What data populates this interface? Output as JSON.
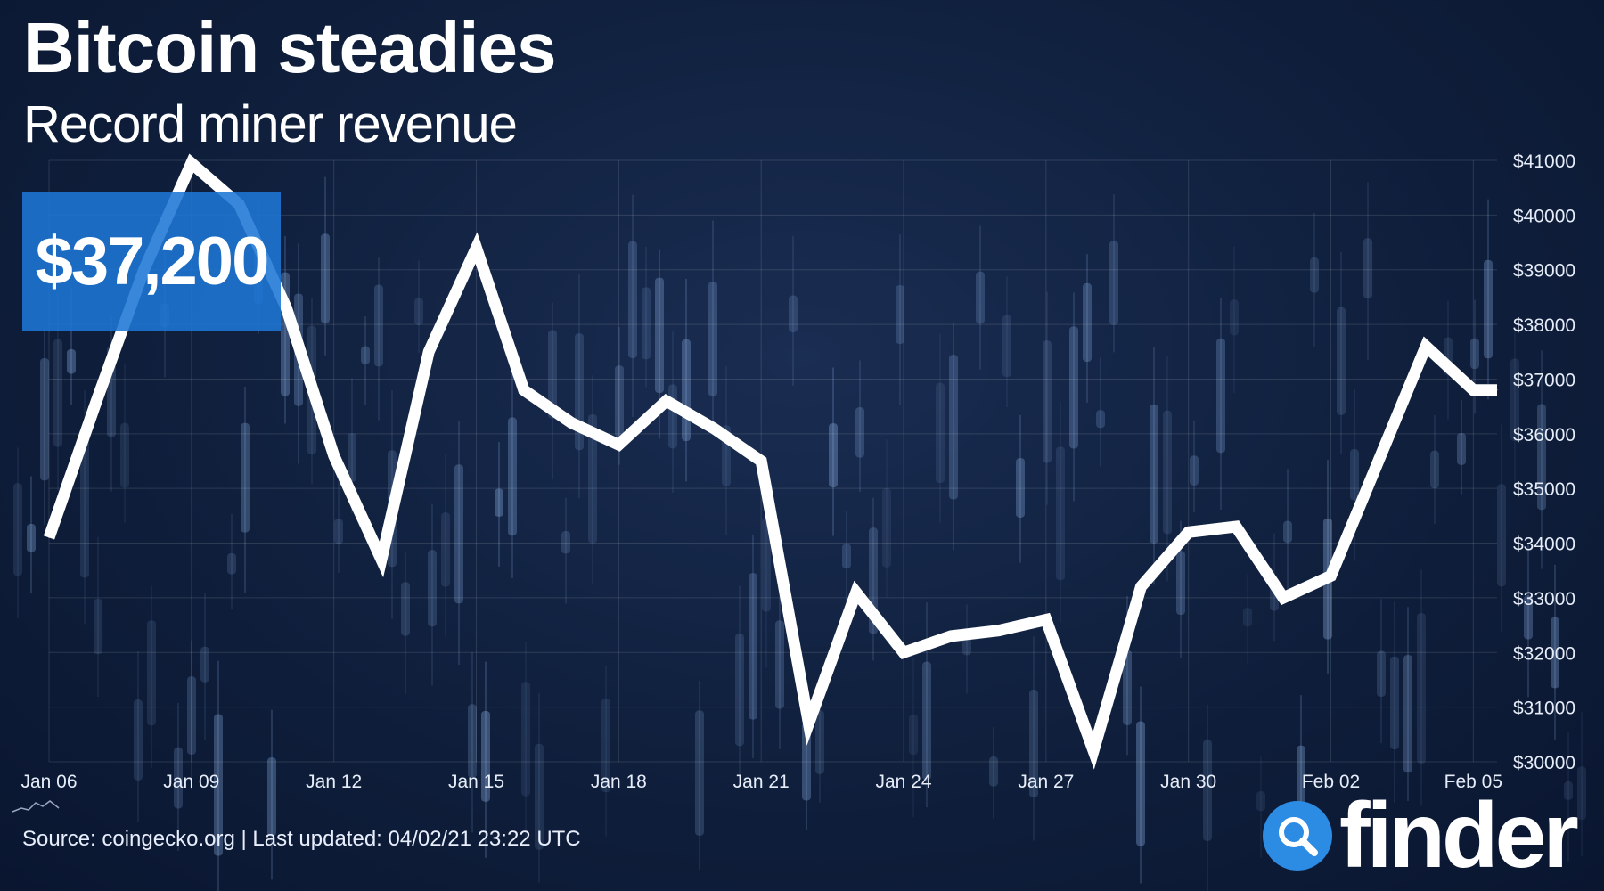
{
  "header": {
    "title": "Bitcoin steadies",
    "subtitle": "Record miner revenue"
  },
  "price_badge": "$37,200",
  "source": "Source: coingecko.org | Last updated: 04/02/21 23:22 UTC",
  "brand": {
    "name": "finder",
    "icon": "search-magnifier-icon"
  },
  "colors": {
    "background": "#0f1f3c",
    "line": "#ffffff",
    "badge": "#1e76d6",
    "brand_icon": "#2c8be3",
    "tick_text": "#e6ecf8"
  },
  "chart_data": {
    "type": "line",
    "title": "Bitcoin steadies",
    "subtitle": "Record miner revenue",
    "xlabel": "",
    "ylabel": "",
    "ylim": [
      30000,
      41000
    ],
    "y_ticks": [
      30000,
      31000,
      32000,
      33000,
      34000,
      35000,
      36000,
      37000,
      38000,
      39000,
      40000,
      41000
    ],
    "y_tick_labels": [
      "$30000",
      "$31000",
      "$32000",
      "$33000",
      "$34000",
      "$35000",
      "$36000",
      "$37000",
      "$38000",
      "$39000",
      "$40000",
      "$41000"
    ],
    "x_tick_labels": [
      "Jan 06",
      "Jan 09",
      "Jan 12",
      "Jan 15",
      "Jan 18",
      "Jan 21",
      "Jan 24",
      "Jan 27",
      "Jan 30",
      "Feb 02",
      "Feb 05"
    ],
    "x_tick_days": [
      0,
      3,
      6,
      9,
      12,
      15,
      18,
      21,
      24,
      27,
      30
    ],
    "grid": true,
    "legend": "none",
    "series": [
      {
        "x": [
          0,
          1,
          2,
          3,
          4,
          5,
          6,
          7,
          8,
          9,
          10,
          11,
          12,
          13,
          14,
          15,
          16,
          17,
          18,
          19,
          20,
          21,
          22,
          23,
          24,
          25,
          26,
          27,
          28,
          29,
          30,
          30.5
        ],
        "values": [
          34100,
          36600,
          39000,
          40950,
          40200,
          38300,
          35600,
          33700,
          37500,
          39400,
          36800,
          36200,
          35800,
          36600,
          36100,
          35500,
          30700,
          33100,
          32000,
          32300,
          32400,
          32600,
          30200,
          33200,
          34200,
          34300,
          33000,
          33400,
          35500,
          37600,
          36800,
          36800
        ]
      }
    ]
  }
}
